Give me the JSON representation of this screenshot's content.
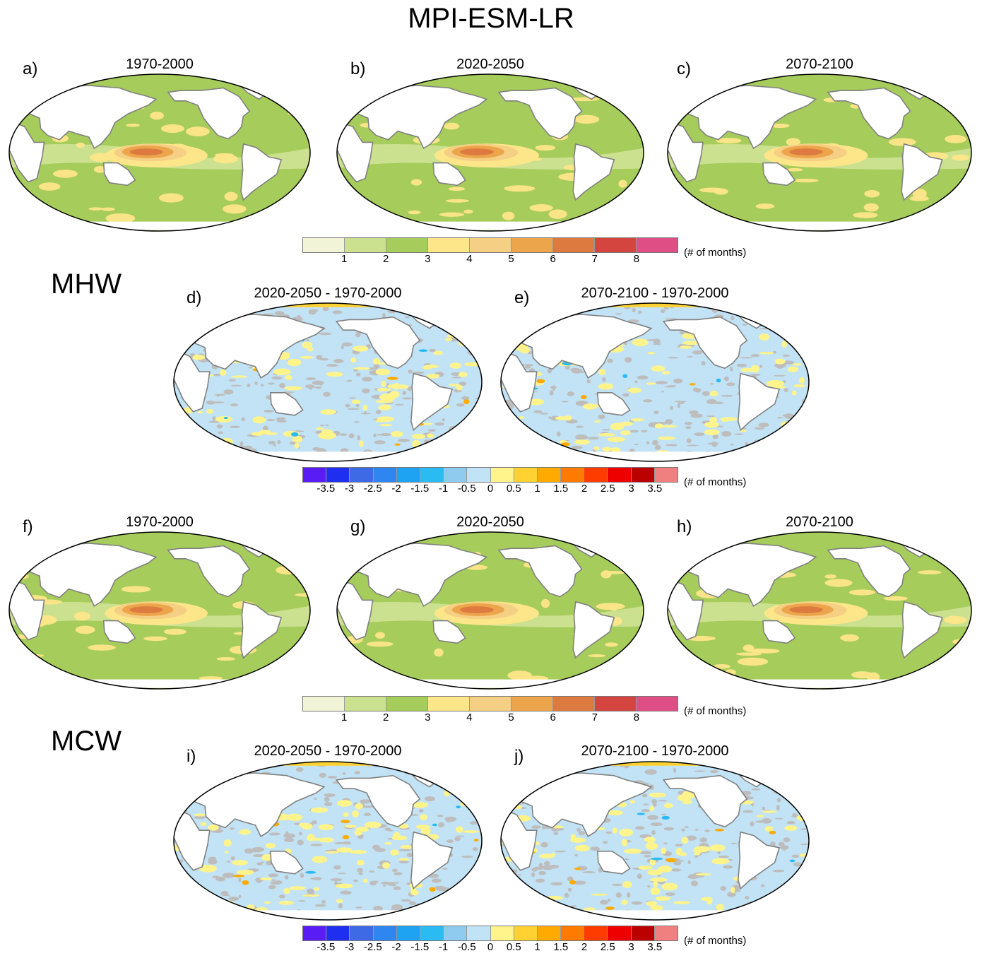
{
  "title": "MPI-ESM-LR",
  "sections": [
    {
      "label": "MHW"
    },
    {
      "label": "MCW"
    }
  ],
  "panels": {
    "a": {
      "letter": "a)",
      "title": "1970-2000",
      "kind": "clim"
    },
    "b": {
      "letter": "b)",
      "title": "2020-2050",
      "kind": "clim"
    },
    "c": {
      "letter": "c)",
      "title": "2070-2100",
      "kind": "clim"
    },
    "d": {
      "letter": "d)",
      "title": "2020-2050 - 1970-2000",
      "kind": "diff"
    },
    "e": {
      "letter": "e)",
      "title": "2070-2100 - 1970-2000",
      "kind": "diff"
    },
    "f": {
      "letter": "f)",
      "title": "1970-2000",
      "kind": "clim"
    },
    "g": {
      "letter": "g)",
      "title": "2020-2050",
      "kind": "clim"
    },
    "h": {
      "letter": "h)",
      "title": "2070-2100",
      "kind": "clim"
    },
    "i": {
      "letter": "i)",
      "title": "2020-2050 - 1970-2000",
      "kind": "diff"
    },
    "j": {
      "letter": "j)",
      "title": "2070-2100 - 1970-2000",
      "kind": "diff"
    }
  },
  "colorbars": {
    "clim": {
      "units": "(# of months)",
      "colors": [
        "#f2f4d7",
        "#cbe18f",
        "#a6cc5c",
        "#fde68a",
        "#f5cf84",
        "#eda54c",
        "#dc7a3f",
        "#d4453f",
        "#e04e86"
      ],
      "ticks": [
        "1",
        "2",
        "3",
        "4",
        "5",
        "6",
        "7",
        "8"
      ]
    },
    "diff": {
      "units": "(# of months)",
      "colors": [
        "#5a1cf5",
        "#1f2ff0",
        "#3f6ae6",
        "#2f86f0",
        "#1ea2f2",
        "#2cbaf2",
        "#8ecbef",
        "#c2e3f5",
        "#fff48c",
        "#ffd232",
        "#ffaa00",
        "#ff7a00",
        "#ff3c00",
        "#ee0000",
        "#bb0000",
        "#f08080"
      ],
      "ticks": [
        "-3.5",
        "-3",
        "-2.5",
        "-2",
        "-1.5",
        "-1",
        "-0.5",
        "0",
        "0.5",
        "1",
        "1.5",
        "2",
        "2.5",
        "3",
        "3.5"
      ]
    }
  }
}
